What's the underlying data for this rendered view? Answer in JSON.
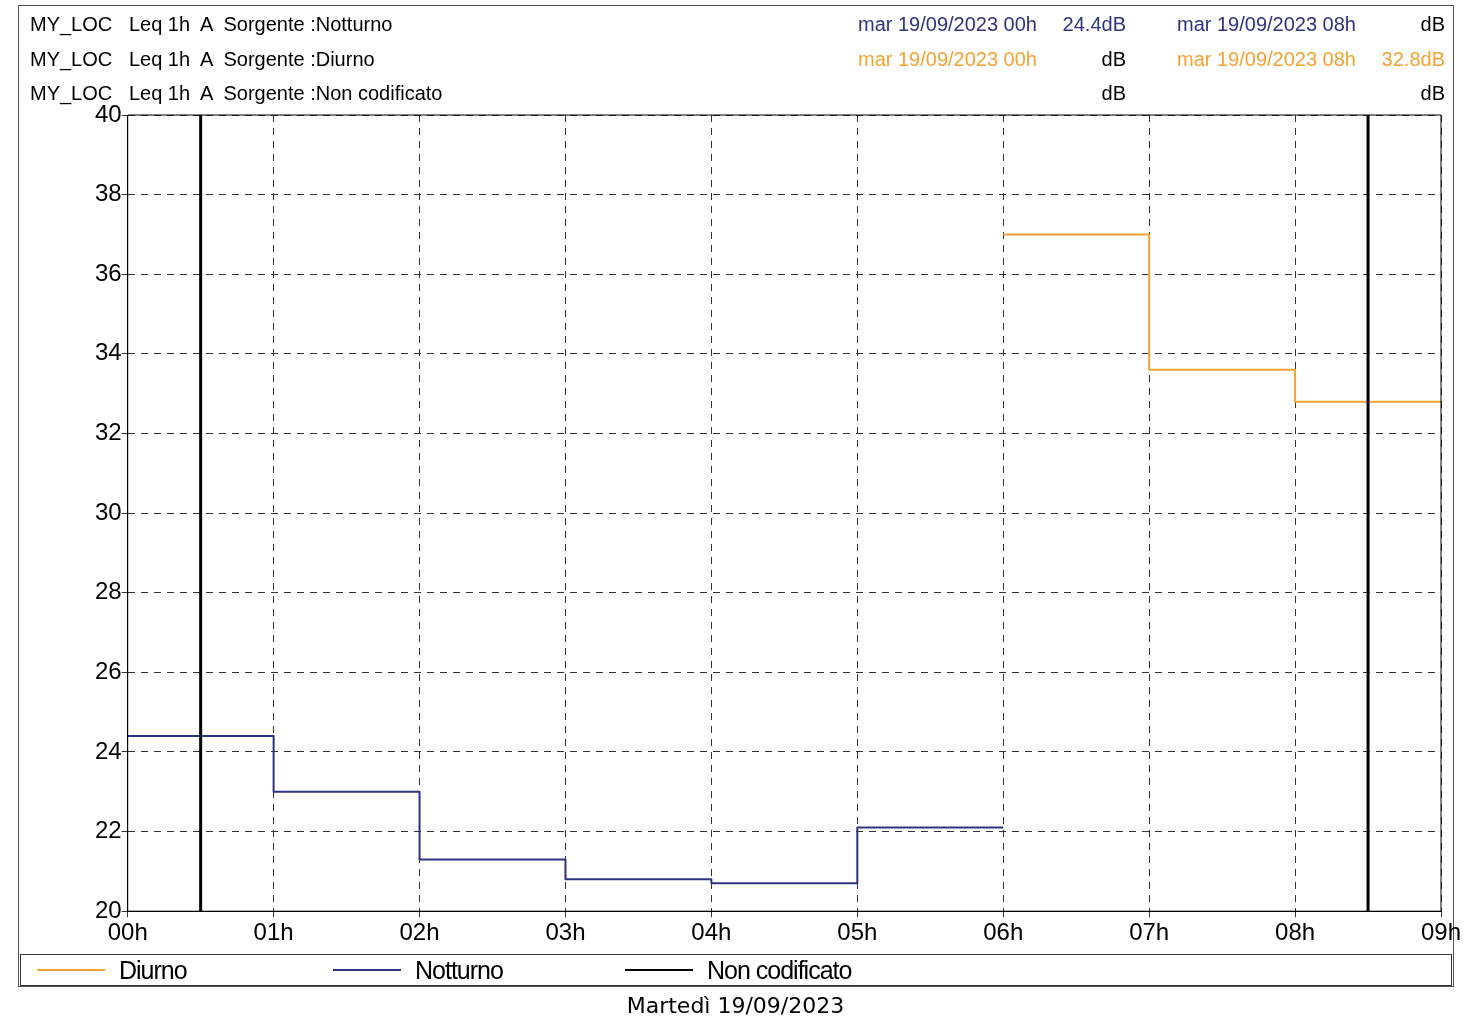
{
  "chart_data": {
    "type": "step",
    "xlabel": "Martedì 19/09/2023",
    "annotations": [
      "MY_LOC   Leq 1h  A  Sorgente :Notturno",
      "mar 19/09/2023 00h",
      "24.4dB",
      "mar 19/09/2023 08h",
      "dB",
      "MY_LOC   Leq 1h  A  Sorgente :Diurno",
      "mar 19/09/2023 00h",
      "dB",
      "mar 19/09/2023 08h",
      "32.8dB",
      "MY_LOC   Leq 1h  A  Sorgente :Non codificato",
      "dB",
      "dB"
    ],
    "series": [
      {
        "name": "Diurno",
        "color": "#f4a331",
        "x": [
          6,
          7,
          8,
          9
        ],
        "values": [
          37.0,
          33.6,
          32.8,
          32.8
        ]
      },
      {
        "name": "Notturno",
        "color": "#2e3283",
        "x": [
          0,
          1,
          2,
          3,
          4,
          5,
          6
        ],
        "values": [
          24.4,
          23.0,
          21.3,
          20.8,
          20.7,
          22.1,
          22.1
        ]
      },
      {
        "name": "Non codificato",
        "color": "#000000"
      }
    ],
    "ref_lines": [
      {
        "axis": "x",
        "value": 0.5,
        "color": "#000000"
      },
      {
        "axis": "x",
        "value": 8.5,
        "color": "#000000"
      }
    ],
    "xlim": [
      0,
      9
    ],
    "xticks": [
      {
        "value": 0,
        "label": "00h"
      },
      {
        "value": 1,
        "label": "01h"
      },
      {
        "value": 2,
        "label": "02h"
      },
      {
        "value": 3,
        "label": "03h"
      },
      {
        "value": 4,
        "label": "04h"
      },
      {
        "value": 5,
        "label": "05h"
      },
      {
        "value": 6,
        "label": "06h"
      },
      {
        "value": 7,
        "label": "07h"
      },
      {
        "value": 8,
        "label": "08h"
      },
      {
        "value": 9,
        "label": "09h"
      }
    ],
    "ylim": [
      20,
      40
    ],
    "yticks": [
      20,
      22,
      24,
      26,
      28,
      30,
      32,
      34,
      36,
      38,
      40
    ],
    "grid": true,
    "legend": "bottom",
    "line_style": "solid",
    "marker": "none"
  }
}
